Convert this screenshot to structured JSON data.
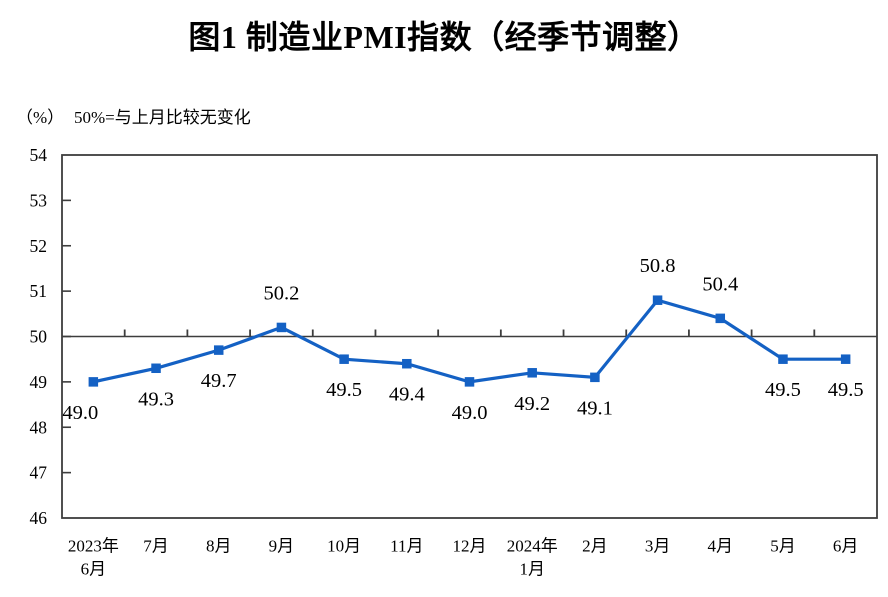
{
  "title": "图1  制造业PMI指数（经季节调整）",
  "unit_label": "（%）",
  "note": "50%=与上月比较无变化",
  "chart_data": {
    "type": "line",
    "title": "图1 制造业PMI指数（经季节调整）",
    "categories": [
      [
        "2023年",
        "6月"
      ],
      [
        "7月"
      ],
      [
        "8月"
      ],
      [
        "9月"
      ],
      [
        "10月"
      ],
      [
        "11月"
      ],
      [
        "12月"
      ],
      [
        "2024年",
        "1月"
      ],
      [
        "2月"
      ],
      [
        "3月"
      ],
      [
        "4月"
      ],
      [
        "5月"
      ],
      [
        "6月"
      ]
    ],
    "values": [
      49.0,
      49.3,
      49.7,
      50.2,
      49.5,
      49.4,
      49.0,
      49.2,
      49.1,
      50.8,
      50.4,
      49.5,
      49.5
    ],
    "label_side": [
      "below",
      "below",
      "below",
      "above",
      "below",
      "below",
      "below",
      "below",
      "below",
      "above",
      "above",
      "below",
      "below"
    ],
    "label_dx": [
      -13,
      0,
      0,
      0,
      0,
      0,
      0,
      0,
      0,
      0,
      0,
      0,
      0
    ],
    "ylim": [
      46,
      54
    ],
    "yticks": [
      46,
      47,
      48,
      49,
      50,
      51,
      52,
      53,
      54
    ],
    "reference_value": 50,
    "grid": "off",
    "legend": "none",
    "line_color": "#1461C4",
    "axis_color": "#3d3d3d",
    "text_color": "#000000"
  }
}
